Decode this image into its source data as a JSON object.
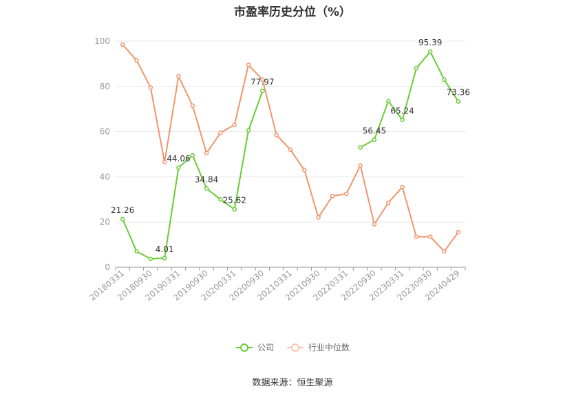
{
  "chart_data": {
    "type": "line",
    "title": "市盈率历史分位（%）",
    "source": "数据来源：恒生聚源",
    "ylim": [
      0,
      100
    ],
    "yticks": [
      0,
      20,
      40,
      60,
      80,
      100
    ],
    "grid": true,
    "legend_position": "bottom",
    "x_tick_labels": [
      "20180331",
      "20180930",
      "20190331",
      "20190930",
      "20200331",
      "20200930",
      "20210331",
      "20210930",
      "20220331",
      "20220930",
      "20230331",
      "20230930",
      "20240429"
    ],
    "x": [
      "20180331",
      "20180630",
      "20180930",
      "20181231",
      "20190331",
      "20190630",
      "20190930",
      "20191231",
      "20200331",
      "20200630",
      "20200930",
      "20201231",
      "20210331",
      "20210630",
      "20210930",
      "20211231",
      "20220331",
      "20220630",
      "20220930",
      "20221231",
      "20230331",
      "20230630",
      "20230930",
      "20231231",
      "20240429"
    ],
    "series": [
      {
        "name": "公司",
        "color": "#66cc33",
        "values": [
          21.26,
          7.0,
          3.7,
          4.01,
          44.06,
          49.5,
          34.84,
          30.0,
          25.62,
          60.5,
          77.97,
          null,
          null,
          null,
          null,
          null,
          null,
          53.0,
          56.45,
          73.5,
          65.24,
          88.0,
          95.39,
          83.0,
          73.36
        ],
        "labels": {
          "0": "21.26",
          "3": "4.01",
          "4": "44.06",
          "6": "34.84",
          "8": "25.62",
          "10": "77.97",
          "18": "56.45",
          "20": "65.24",
          "22": "95.39",
          "24": "73.36"
        }
      },
      {
        "name": "行业中位数",
        "color": "#f0956a",
        "values": [
          98.5,
          91.5,
          79.5,
          46.5,
          84.5,
          71.5,
          50.5,
          59.5,
          63.0,
          89.5,
          83.0,
          58.5,
          52.0,
          43.0,
          22.0,
          31.5,
          32.5,
          45.0,
          19.0,
          28.5,
          35.5,
          13.5,
          13.5,
          7.0,
          15.5
        ]
      }
    ]
  }
}
